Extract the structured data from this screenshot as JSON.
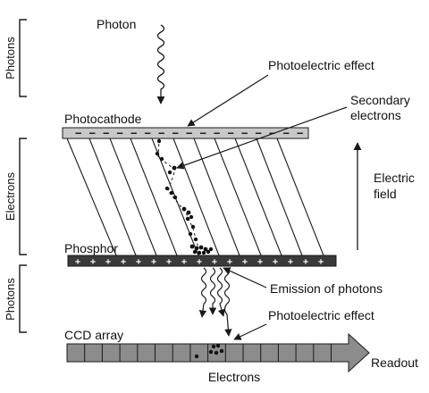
{
  "side_labels": {
    "top": "Photons",
    "middle": "Electrons",
    "bottom": "Photons"
  },
  "labels": {
    "photon": "Photon",
    "photoelectric_top": "Photoelectric effect",
    "photocathode": "Photocathode",
    "secondary_electrons_line1": "Secondary",
    "secondary_electrons_line2": "electrons",
    "electric_field_line1": "Electric",
    "electric_field_line2": "field",
    "phosphor": "Phosphor",
    "emission": "Emission of photons",
    "photoelectric_bottom": "Photoelectric effect",
    "ccd_array": "CCD array",
    "readout": "Readout",
    "electrons_bottom": "Electrons"
  },
  "glyphs": {
    "minus": "−",
    "plus": "+"
  },
  "colors": {
    "photocathode_fill": "#c8c8c8",
    "phosphor_fill": "#3a3a3a",
    "ccd_fill": "#8c8c8c",
    "line": "#1a1a1a"
  }
}
